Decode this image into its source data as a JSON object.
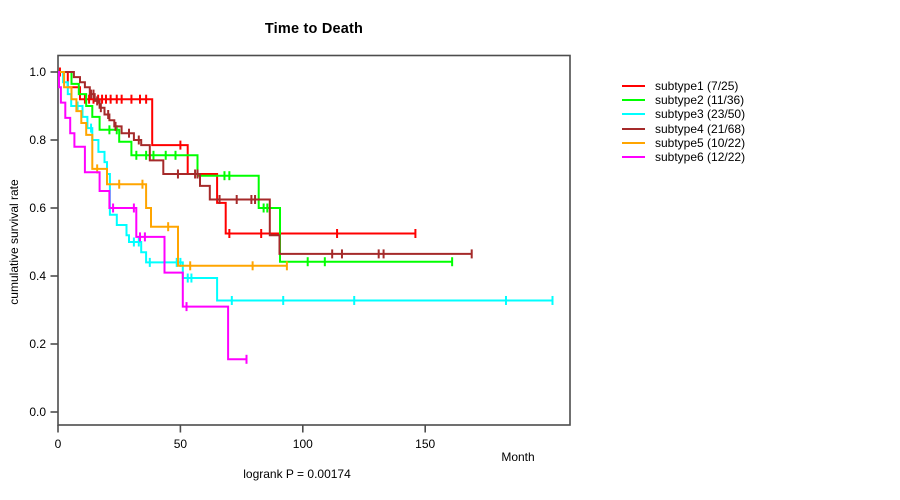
{
  "chart_data": {
    "type": "line",
    "variant": "kaplan-meier-step-curves",
    "title": "Time to Death",
    "xlabel": "Month",
    "ylabel": "cumulative survival rate",
    "annotation": "logrank P = 0.00174",
    "grid": "off",
    "legend_position": "right-outside",
    "xlim": [
      0,
      209
    ],
    "ylim": [
      0,
      1
    ],
    "x_axis": {
      "ticks": [
        {
          "value": 0,
          "label": "0"
        },
        {
          "value": 50,
          "label": "50"
        },
        {
          "value": 100,
          "label": "100"
        },
        {
          "value": 150,
          "label": "150"
        }
      ]
    },
    "y_axis": {
      "ticks": [
        {
          "value": 0.0,
          "label": "0.0"
        },
        {
          "value": 0.2,
          "label": "0.2"
        },
        {
          "value": 0.4,
          "label": "0.4"
        },
        {
          "value": 0.6,
          "label": "0.6"
        },
        {
          "value": 0.8,
          "label": "0.8"
        },
        {
          "value": 1.0,
          "label": "1.0"
        }
      ]
    },
    "series": [
      {
        "name": "subtype1",
        "legend_label": "subtype1 (7/25)",
        "color": "#FF0000",
        "start": [
          0,
          1.0
        ],
        "steps": [
          [
            4,
            0.955
          ],
          [
            9,
            0.92
          ],
          [
            38.5,
            0.785
          ],
          [
            53,
            0.7
          ],
          [
            65,
            0.615
          ],
          [
            68.5,
            0.525
          ]
        ],
        "censor_times": [
          0.8,
          11,
          12.7,
          14.5,
          16.4,
          18,
          19.6,
          21.5,
          24,
          26,
          30,
          33.5,
          36,
          50,
          70,
          83,
          114
        ],
        "end_time": 146,
        "end_censored": true
      },
      {
        "name": "subtype2",
        "legend_label": "subtype2 (11/36)",
        "color": "#00FF00",
        "start": [
          0,
          1.0
        ],
        "steps": [
          [
            5.5,
            0.965
          ],
          [
            8.5,
            0.935
          ],
          [
            11.5,
            0.9
          ],
          [
            14,
            0.868
          ],
          [
            17,
            0.83
          ],
          [
            25,
            0.795
          ],
          [
            30,
            0.755
          ],
          [
            57,
            0.695
          ],
          [
            82,
            0.6
          ],
          [
            90.7,
            0.442
          ]
        ],
        "censor_times": [
          21,
          24,
          32,
          36,
          39,
          44,
          48,
          68,
          70,
          84,
          85.5,
          102,
          109
        ],
        "end_time": 161,
        "end_censored": true
      },
      {
        "name": "subtype3",
        "legend_label": "subtype3 (23/50)",
        "color": "#00FFFF",
        "start": [
          0,
          1.0
        ],
        "steps": [
          [
            2.1,
            0.97
          ],
          [
            4,
            0.935
          ],
          [
            5.4,
            0.9
          ],
          [
            10,
            0.868
          ],
          [
            12,
            0.835
          ],
          [
            14,
            0.8
          ],
          [
            16.5,
            0.765
          ],
          [
            19,
            0.735
          ],
          [
            20,
            0.7
          ],
          [
            21.2,
            0.58
          ],
          [
            24,
            0.55
          ],
          [
            28,
            0.52
          ],
          [
            29,
            0.5
          ],
          [
            34,
            0.47
          ],
          [
            36,
            0.44
          ],
          [
            51,
            0.394
          ],
          [
            65,
            0.328
          ]
        ],
        "censor_times": [
          8,
          13.5,
          31,
          33,
          37.5,
          48.5,
          50,
          53,
          54.5,
          71,
          92,
          121,
          183
        ],
        "end_time": 202,
        "end_censored": true
      },
      {
        "name": "subtype4",
        "legend_label": "subtype4 (21/68)",
        "color": "#A52A2A",
        "start": [
          0,
          1.0
        ],
        "steps": [
          [
            6.5,
            0.985
          ],
          [
            9,
            0.97
          ],
          [
            11,
            0.955
          ],
          [
            13,
            0.935
          ],
          [
            15,
            0.915
          ],
          [
            17,
            0.895
          ],
          [
            19,
            0.875
          ],
          [
            21,
            0.858
          ],
          [
            23,
            0.84
          ],
          [
            26,
            0.82
          ],
          [
            31,
            0.8
          ],
          [
            34,
            0.785
          ],
          [
            37.5,
            0.74
          ],
          [
            43,
            0.7
          ],
          [
            58,
            0.665
          ],
          [
            62,
            0.625
          ],
          [
            86.5,
            0.52
          ],
          [
            90.5,
            0.465
          ]
        ],
        "censor_times": [
          13.5,
          14.5,
          16,
          17.5,
          20.5,
          23.5,
          29,
          33,
          49,
          56,
          57,
          66,
          73,
          79,
          80.5,
          112,
          116,
          131,
          133
        ],
        "end_time": 169,
        "end_censored": true
      },
      {
        "name": "subtype5",
        "legend_label": "subtype5 (10/22)",
        "color": "#FFA500",
        "start": [
          0,
          1.0
        ],
        "steps": [
          [
            2.5,
            0.955
          ],
          [
            5.5,
            0.92
          ],
          [
            7.5,
            0.885
          ],
          [
            9.5,
            0.85
          ],
          [
            11.5,
            0.815
          ],
          [
            14,
            0.715
          ],
          [
            20,
            0.67
          ],
          [
            36,
            0.6
          ],
          [
            38,
            0.545
          ],
          [
            49,
            0.43
          ]
        ],
        "censor_times": [
          16,
          25,
          34.5,
          45,
          54,
          79.5
        ],
        "end_time": 93.5,
        "end_censored": true
      },
      {
        "name": "subtype6",
        "legend_label": "subtype6 (12/22)",
        "color": "#FF00FF",
        "start": [
          0,
          1.0
        ],
        "steps": [
          [
            0.4,
            0.955
          ],
          [
            1.2,
            0.91
          ],
          [
            3,
            0.865
          ],
          [
            5,
            0.82
          ],
          [
            6.7,
            0.78
          ],
          [
            11,
            0.705
          ],
          [
            17,
            0.65
          ],
          [
            21,
            0.6
          ],
          [
            32,
            0.515
          ],
          [
            43.5,
            0.41
          ],
          [
            51,
            0.31
          ],
          [
            69.5,
            0.155
          ]
        ],
        "censor_times": [
          22.5,
          31,
          33.5,
          35.5,
          52.5
        ],
        "end_time": 77,
        "end_censored": true
      }
    ],
    "style": {
      "axis_color": "#4d4d4d",
      "text_color": "#000000",
      "line_width": 2,
      "censor_tick_half_height": 4.5
    }
  }
}
